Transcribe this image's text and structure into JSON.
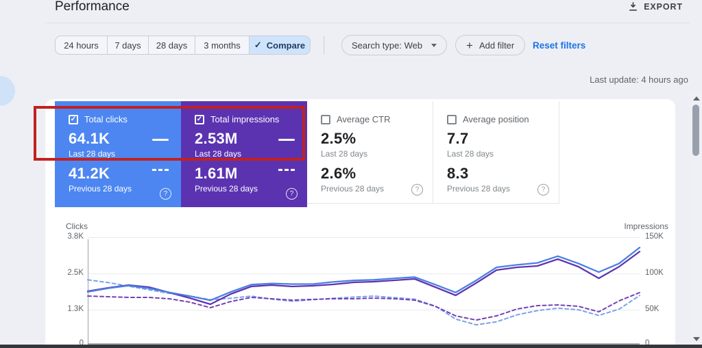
{
  "header": {
    "title": "Performance",
    "export_label": "EXPORT"
  },
  "toolbar": {
    "ranges": [
      "24 hours",
      "7 days",
      "28 days",
      "3 months"
    ],
    "compare_label": "Compare",
    "search_type_label": "Search type: Web",
    "add_filter_label": "Add filter",
    "reset_filters_label": "Reset filters",
    "last_update": "Last update: 4 hours ago"
  },
  "icons": {
    "check": "✓",
    "plus": "+",
    "help": "?"
  },
  "cards": [
    {
      "label": "Total clicks",
      "checked": true,
      "value": "64.1K",
      "value_caption": "Last 28 days",
      "prev_value": "41.2K",
      "prev_caption": "Previous 28 days"
    },
    {
      "label": "Total impressions",
      "checked": true,
      "value": "2.53M",
      "value_caption": "Last 28 days",
      "prev_value": "1.61M",
      "prev_caption": "Previous 28 days"
    },
    {
      "label": "Average CTR",
      "checked": false,
      "value": "2.5%",
      "value_caption": "Last 28 days",
      "prev_value": "2.6%",
      "prev_caption": "Previous 28 days"
    },
    {
      "label": "Average position",
      "checked": false,
      "value": "7.7",
      "value_caption": "Last 28 days",
      "prev_value": "8.3",
      "prev_caption": "Previous 28 days"
    }
  ],
  "colors": {
    "clicks_card": "#4d86f1",
    "impressions_card": "#5b33b1",
    "annotation_red": "#c2211f",
    "compare_bg": "#cfe4fc",
    "link_blue": "#1a73e8"
  },
  "chart_data": {
    "type": "line",
    "x": {
      "points": 28,
      "note": "one point per day over 28 days; x-axis date labels cropped out of view"
    },
    "grid": true,
    "left_axis": {
      "label": "Clicks",
      "tick_labels": [
        "3.8K",
        "2.5K",
        "1.3K",
        "0"
      ],
      "scale_ticks": [
        3.8,
        2.5,
        1.3
      ]
    },
    "right_axis": {
      "label": "Impressions",
      "tick_labels": [
        "150K",
        "100K",
        "50K",
        "0"
      ],
      "scale_ticks": [
        150,
        100,
        50
      ]
    },
    "series": [
      {
        "name": "Total clicks — Previous 28 days",
        "axis": "left",
        "unit": "K",
        "style": "dashed",
        "color": "#79a1e9",
        "values": [
          2.29,
          2.2,
          2.08,
          1.96,
          1.84,
          1.75,
          1.63,
          1.68,
          1.75,
          1.65,
          1.58,
          1.63,
          1.68,
          1.72,
          1.75,
          1.7,
          1.65,
          1.42,
          0.99,
          0.8,
          0.9,
          1.13,
          1.27,
          1.35,
          1.3,
          1.11,
          1.32,
          1.77
        ]
      },
      {
        "name": "Total impressions — Previous 28 days",
        "axis": "right",
        "unit": "K",
        "style": "dashed",
        "color": "#7440b4",
        "values": [
          68.9,
          67.9,
          67.0,
          67.0,
          65.1,
          60.4,
          52.8,
          61.3,
          67.0,
          65.1,
          63.2,
          64.2,
          65.1,
          65.1,
          66.0,
          65.1,
          63.2,
          54.7,
          41.5,
          35.8,
          41.5,
          50.9,
          55.7,
          56.6,
          54.7,
          47.2,
          62.3,
          73.6
        ]
      },
      {
        "name": "Total impressions — Last 28 days",
        "axis": "right",
        "unit": "K",
        "style": "solid",
        "color": "#5e35b1",
        "values": [
          75.5,
          80.2,
          84.0,
          81.1,
          73.6,
          66.0,
          57.5,
          71.7,
          82.1,
          84.0,
          82.1,
          83.0,
          84.9,
          87.7,
          88.7,
          90.6,
          92.5,
          81.1,
          69.8,
          86.8,
          104.7,
          108.5,
          110.4,
          119.8,
          109.4,
          93.4,
          109.4,
          130.2
        ]
      },
      {
        "name": "Total clicks — Last 28 days",
        "axis": "left",
        "unit": "K",
        "style": "solid",
        "color": "#4b7ee3",
        "values": [
          1.89,
          2.01,
          2.1,
          2.01,
          1.87,
          1.75,
          1.61,
          1.89,
          2.13,
          2.17,
          2.15,
          2.15,
          2.22,
          2.27,
          2.29,
          2.34,
          2.38,
          2.13,
          1.87,
          2.27,
          2.72,
          2.81,
          2.88,
          3.12,
          2.86,
          2.55,
          2.86,
          3.43
        ]
      }
    ]
  }
}
